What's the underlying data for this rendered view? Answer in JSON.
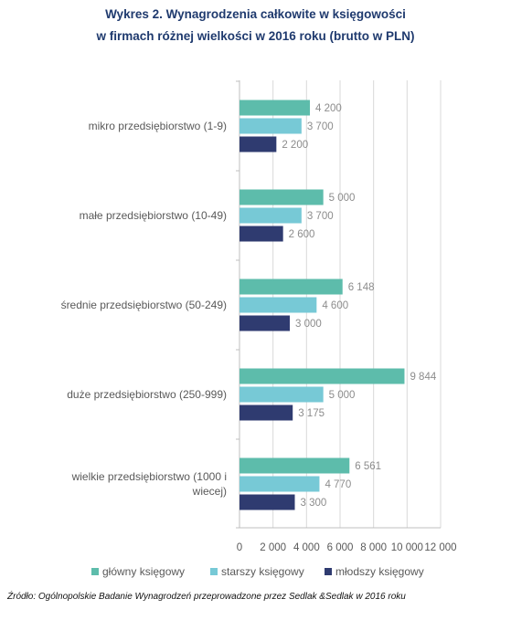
{
  "title_line1": "Wykres 2. Wynagrodzenia całkowite w księgowości",
  "title_line2": "w firmach różnej wielkości w 2016 roku (brutto w PLN)",
  "source": "Źródło: Ogólnopolskie Badanie Wynagrodzeń przeprowadzone  przez  Sedlak &Sedlak w 2016 roku",
  "colors": {
    "glowny": "#5dbcab",
    "starszy": "#77c9d6",
    "mlodszy": "#2f3b70",
    "axis_text": "#595959",
    "label_text": "#8c8c8c",
    "grid": "#d9d9d9"
  },
  "chart_data": {
    "type": "bar",
    "orientation": "horizontal",
    "categories": [
      [
        "mikro przedsiębiorstwo (1-9)"
      ],
      [
        "małe przedsiębiorstwo (10-49)"
      ],
      [
        "średnie przedsiębiorstwo (50-249)"
      ],
      [
        "duże przedsiębiorstwo (250-999)"
      ],
      [
        "wielkie przedsiębiorstwo (1000 i",
        "wiecej)"
      ]
    ],
    "series": [
      {
        "name": "główny księgowy",
        "values": [
          4200,
          5000,
          6148,
          9844,
          6561
        ],
        "labels": [
          "4 200",
          "5 000",
          "6 148",
          "9 844",
          "6 561"
        ]
      },
      {
        "name": "starszy księgowy",
        "values": [
          3700,
          3700,
          4600,
          5000,
          4770
        ],
        "labels": [
          "3 700",
          "3 700",
          "4 600",
          "5 000",
          "4 770"
        ]
      },
      {
        "name": "młodszy księgowy",
        "values": [
          2200,
          2600,
          3000,
          3175,
          3300
        ],
        "labels": [
          "2 200",
          "2 600",
          "3 000",
          "3 175",
          "3 300"
        ]
      }
    ],
    "xlim": [
      0,
      12000
    ],
    "xticks": [
      0,
      2000,
      4000,
      6000,
      8000,
      10000,
      12000
    ],
    "xtick_labels": [
      "0",
      "2 000",
      "4 000",
      "6 000",
      "8 000",
      "10 000",
      "12 000"
    ],
    "grid": true,
    "legend": "bottom"
  }
}
